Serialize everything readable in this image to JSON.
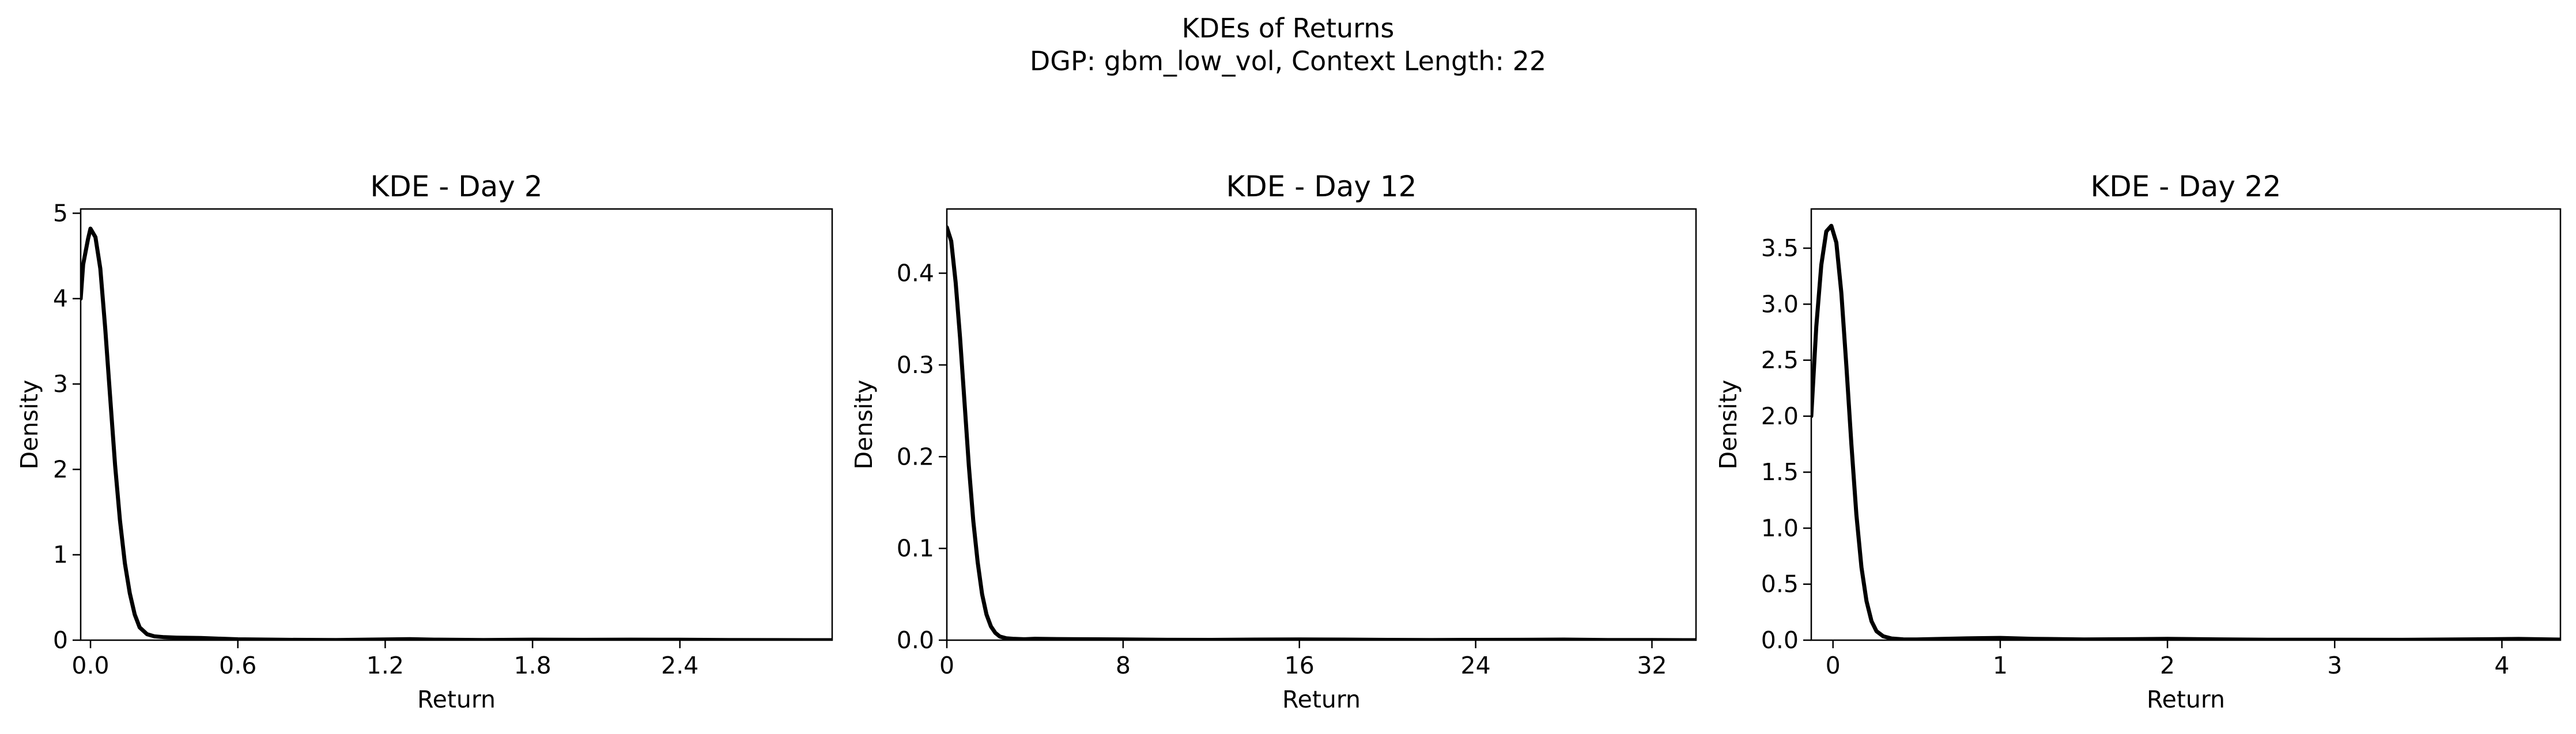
{
  "suptitle": {
    "line1": "KDEs of Returns",
    "line2": "DGP: gbm_low_vol, Context Length: 22"
  },
  "chart_data": [
    {
      "type": "line",
      "title": "KDE - Day 2",
      "xlabel": "Return",
      "ylabel": "Density",
      "xlim": [
        -0.04,
        3.02
      ],
      "ylim": [
        0,
        5.05
      ],
      "xticks": [
        0.0,
        0.6,
        1.2,
        1.8,
        2.4
      ],
      "xtick_labels": [
        "0.0",
        "0.6",
        "1.2",
        "1.8",
        "2.4"
      ],
      "yticks": [
        0,
        1,
        2,
        3,
        4,
        5
      ],
      "ytick_labels": [
        "0",
        "1",
        "2",
        "3",
        "4",
        "5"
      ],
      "color": "#000000",
      "series": [
        {
          "x": [
            -0.04,
            -0.03,
            -0.01,
            0.0,
            0.02,
            0.04,
            0.06,
            0.08,
            0.1,
            0.12,
            0.14,
            0.16,
            0.18,
            0.2,
            0.23,
            0.26,
            0.3,
            0.35,
            0.45,
            0.6,
            0.8,
            1.0,
            1.2,
            1.3,
            1.4,
            1.6,
            1.8,
            2.0,
            2.2,
            2.4,
            2.6,
            2.8,
            3.02
          ],
          "y": [
            4.0,
            4.4,
            4.7,
            4.82,
            4.72,
            4.35,
            3.65,
            2.85,
            2.05,
            1.4,
            0.9,
            0.55,
            0.3,
            0.15,
            0.07,
            0.045,
            0.035,
            0.03,
            0.025,
            0.01,
            0.004,
            0.002,
            0.008,
            0.012,
            0.006,
            0.002,
            0.006,
            0.004,
            0.006,
            0.005,
            0.002,
            0.001,
            0.0
          ]
        }
      ]
    },
    {
      "type": "line",
      "title": "KDE - Day 12",
      "xlabel": "Return",
      "ylabel": "Density",
      "xlim": [
        0,
        34
      ],
      "ylim": [
        0,
        0.47
      ],
      "xticks": [
        0,
        8,
        16,
        24,
        32
      ],
      "xtick_labels": [
        "0",
        "8",
        "16",
        "24",
        "32"
      ],
      "yticks": [
        0.0,
        0.1,
        0.2,
        0.3,
        0.4
      ],
      "ytick_labels": [
        "0.0",
        "0.1",
        "0.2",
        "0.3",
        "0.4"
      ],
      "color": "#000000",
      "series": [
        {
          "x": [
            0.0,
            0.2,
            0.4,
            0.6,
            0.8,
            1.0,
            1.2,
            1.4,
            1.6,
            1.8,
            2.0,
            2.2,
            2.4,
            2.7,
            3.0,
            3.5,
            4.0,
            5.0,
            6.0,
            8.0,
            10.0,
            12.0,
            14.0,
            16.0,
            18.0,
            20.0,
            22.0,
            24.0,
            26.0,
            28.0,
            30.0,
            32.0,
            34.0
          ],
          "y": [
            0.45,
            0.435,
            0.39,
            0.33,
            0.26,
            0.19,
            0.13,
            0.085,
            0.05,
            0.028,
            0.015,
            0.008,
            0.004,
            0.002,
            0.0015,
            0.001,
            0.0015,
            0.0012,
            0.001,
            0.0008,
            0.0004,
            0.0003,
            0.0006,
            0.0008,
            0.0006,
            0.0003,
            0.0002,
            0.0003,
            0.0004,
            0.0006,
            0.0002,
            0.0001,
            0.0
          ]
        }
      ]
    },
    {
      "type": "line",
      "title": "KDE - Day 22",
      "xlabel": "Return",
      "ylabel": "Density",
      "xlim": [
        -0.13,
        4.35
      ],
      "ylim": [
        0,
        3.85
      ],
      "xticks": [
        0,
        1,
        2,
        3,
        4
      ],
      "xtick_labels": [
        "0",
        "1",
        "2",
        "3",
        "4"
      ],
      "yticks": [
        0.0,
        0.5,
        1.0,
        1.5,
        2.0,
        2.5,
        3.0,
        3.5
      ],
      "ytick_labels": [
        "0.0",
        "0.5",
        "1.0",
        "1.5",
        "2.0",
        "2.5",
        "3.0",
        "3.5"
      ],
      "color": "#000000",
      "series": [
        {
          "x": [
            -0.13,
            -0.1,
            -0.07,
            -0.04,
            -0.01,
            0.02,
            0.05,
            0.08,
            0.11,
            0.14,
            0.17,
            0.2,
            0.23,
            0.26,
            0.3,
            0.35,
            0.42,
            0.5,
            0.6,
            0.8,
            1.0,
            1.2,
            1.5,
            1.8,
            2.0,
            2.3,
            2.6,
            3.0,
            3.4,
            3.8,
            4.1,
            4.35
          ],
          "y": [
            2.0,
            2.8,
            3.35,
            3.65,
            3.7,
            3.55,
            3.1,
            2.45,
            1.75,
            1.12,
            0.65,
            0.35,
            0.17,
            0.08,
            0.035,
            0.015,
            0.007,
            0.006,
            0.01,
            0.016,
            0.02,
            0.012,
            0.006,
            0.009,
            0.012,
            0.007,
            0.004,
            0.004,
            0.003,
            0.007,
            0.011,
            0.005
          ]
        }
      ]
    }
  ]
}
